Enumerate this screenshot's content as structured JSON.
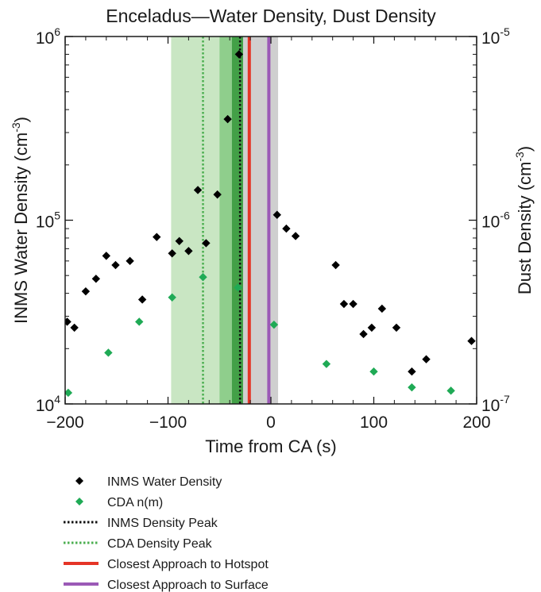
{
  "chart_data": {
    "type": "scatter",
    "title": "Enceladus—Water Density, Dust Density",
    "xlabel": "Time from CA (s)",
    "ylabel_left": {
      "text": "INMS Water Density (cm",
      "sup": "-3",
      "close": ")"
    },
    "ylabel_right": {
      "text": "Dust Density (cm",
      "sup": "-3",
      "close": ")"
    },
    "xlim": [
      -200,
      200
    ],
    "xticks": [
      -200,
      -100,
      0,
      100,
      200
    ],
    "xtick_labels": [
      "−200",
      "−100",
      "0",
      "100",
      "200"
    ],
    "ylim_left": [
      10000,
      1000000
    ],
    "ylim_right": [
      1e-07,
      1e-05
    ],
    "yscale": "log",
    "left_ticks": [
      {
        "value": 10000,
        "base": "10",
        "exp": "4"
      },
      {
        "value": 100000,
        "base": "10",
        "exp": "5"
      },
      {
        "value": 1000000,
        "base": "10",
        "exp": "6"
      }
    ],
    "right_ticks": [
      {
        "value": 1e-07,
        "base": "10",
        "exp": "-7"
      },
      {
        "value": 1e-06,
        "base": "10",
        "exp": "-6"
      },
      {
        "value": 1e-05,
        "base": "10",
        "exp": "-5"
      }
    ],
    "bands": [
      {
        "x0": -97,
        "x1": -50,
        "color": "#c9e6c3"
      },
      {
        "x0": -50,
        "x1": -38,
        "color": "#8fce8c"
      },
      {
        "x0": -38,
        "x1": -27,
        "color": "#43a047"
      },
      {
        "x0": -27,
        "x1": 7,
        "color": "#cfcfcf"
      }
    ],
    "lines": [
      {
        "x": -66,
        "color": "#4caf50",
        "style": "dotted",
        "name": "CDA Density Peak"
      },
      {
        "x": -30,
        "color": "#111111",
        "style": "dotted",
        "name": "INMS Density Peak"
      },
      {
        "x": -21,
        "color": "#e53527",
        "style": "solid",
        "name": "Closest Approach to Hotspot"
      },
      {
        "x": -2,
        "color": "#9b59b6",
        "style": "solid",
        "name": "Closest Approach to Surface"
      }
    ],
    "series": [
      {
        "name": "INMS Water Density",
        "axis": "left",
        "color": "#000000",
        "marker": "diamond",
        "points": [
          [
            -198,
            28000
          ],
          [
            -191,
            26000
          ],
          [
            -180,
            41000
          ],
          [
            -170,
            48000
          ],
          [
            -160,
            64000
          ],
          [
            -151,
            57000
          ],
          [
            -137,
            60000
          ],
          [
            -125,
            37000
          ],
          [
            -111,
            81000
          ],
          [
            -96,
            66000
          ],
          [
            -89,
            77000
          ],
          [
            -80,
            68000
          ],
          [
            -71,
            146000
          ],
          [
            -63,
            75000
          ],
          [
            -52,
            138000
          ],
          [
            -42,
            355000
          ],
          [
            -31,
            800000
          ],
          [
            6,
            107000
          ],
          [
            15,
            90000
          ],
          [
            24,
            82000
          ],
          [
            63,
            57000
          ],
          [
            71,
            35000
          ],
          [
            80,
            35000
          ],
          [
            90,
            24000
          ],
          [
            98,
            26000
          ],
          [
            108,
            33000
          ],
          [
            122,
            26000
          ],
          [
            137,
            15000
          ],
          [
            151,
            17500
          ],
          [
            195,
            22000
          ]
        ]
      },
      {
        "name": "CDA n(m)",
        "axis": "right",
        "color": "#1faa55",
        "marker": "diamond",
        "points": [
          [
            -197,
            1.15e-07
          ],
          [
            -158,
            1.9e-07
          ],
          [
            -128,
            2.8e-07
          ],
          [
            -96,
            3.8e-07
          ],
          [
            -66,
            4.9e-07
          ],
          [
            -32,
            4.3e-07
          ],
          [
            3,
            2.7e-07
          ],
          [
            54,
            1.65e-07
          ],
          [
            100,
            1.5e-07
          ],
          [
            137,
            1.23e-07
          ],
          [
            175,
            1.18e-07
          ]
        ]
      }
    ],
    "legend": {
      "position": "below",
      "entries": [
        {
          "label": "INMS Water Density",
          "kind": "diamond",
          "color": "#000000"
        },
        {
          "label": "CDA n(m)",
          "kind": "diamond",
          "color": "#1faa55"
        },
        {
          "label": "INMS Density Peak",
          "kind": "dotted",
          "color": "#111111"
        },
        {
          "label": "CDA Density Peak",
          "kind": "dotted",
          "color": "#4caf50"
        },
        {
          "label": "Closest Approach to Hotspot",
          "kind": "solid",
          "color": "#e53527"
        },
        {
          "label": "Closest Approach to Surface",
          "kind": "solid",
          "color": "#9b59b6"
        }
      ]
    }
  }
}
